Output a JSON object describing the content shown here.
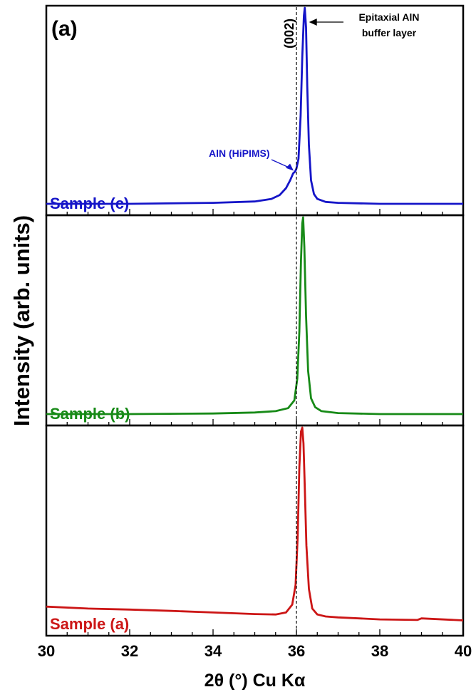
{
  "figure": {
    "panel_label": "(a)",
    "ylabel": "Intensity (arb. units)",
    "xlabel": "2θ (°) Cu Kα",
    "reference_label": "(002)",
    "reference_x": 36.0
  },
  "chart_data": {
    "type": "line",
    "title": "",
    "xlabel": "2θ (°) Cu Kα",
    "ylabel": "Intensity (arb. units)",
    "xlim": [
      30,
      40
    ],
    "xticks": [
      30,
      32,
      34,
      36,
      38,
      40
    ],
    "xtick_labels": [
      "30",
      "32",
      "34",
      "36",
      "38",
      "40"
    ],
    "grid": false,
    "legend": "none",
    "stacked_panels": [
      {
        "key": "c",
        "label": "Sample (c)",
        "color": "#1515c8",
        "ylim": [
          0,
          1
        ],
        "x": [
          30.0,
          32.0,
          34.0,
          35.0,
          35.4,
          35.6,
          35.75,
          35.85,
          35.92,
          35.97,
          36.0,
          36.05,
          36.1,
          36.14,
          36.18,
          36.2,
          36.23,
          36.26,
          36.3,
          36.35,
          36.42,
          36.5,
          36.7,
          37.0,
          38.0,
          40.0
        ],
        "y": [
          0.0,
          0.0,
          0.005,
          0.012,
          0.025,
          0.045,
          0.08,
          0.12,
          0.155,
          0.165,
          0.18,
          0.23,
          0.45,
          0.75,
          0.96,
          1.0,
          0.9,
          0.6,
          0.3,
          0.12,
          0.05,
          0.025,
          0.01,
          0.005,
          0.0,
          0.0
        ],
        "annotations": [
          {
            "text": "AlN (HiPIMS)",
            "x": 35.95,
            "y": 0.165
          },
          {
            "text": "Epitaxial AlN",
            "x": 36.2,
            "y": 0.96
          },
          {
            "text": "buffer layer",
            "x": 36.2,
            "y": 0.96
          }
        ]
      },
      {
        "key": "b",
        "label": "Sample (b)",
        "color": "#178a17",
        "ylim": [
          0,
          1
        ],
        "x": [
          30.0,
          32.0,
          34.0,
          35.0,
          35.5,
          35.8,
          35.95,
          36.02,
          36.07,
          36.11,
          36.14,
          36.16,
          36.19,
          36.23,
          36.28,
          36.35,
          36.45,
          36.6,
          37.0,
          38.0,
          40.0
        ],
        "y": [
          0.0,
          0.0,
          0.003,
          0.008,
          0.015,
          0.03,
          0.07,
          0.18,
          0.42,
          0.78,
          0.97,
          1.0,
          0.85,
          0.5,
          0.22,
          0.08,
          0.035,
          0.015,
          0.005,
          0.0,
          0.0
        ],
        "annotations": []
      },
      {
        "key": "a",
        "label": "Sample (a)",
        "color": "#cc1616",
        "ylim": [
          0,
          1
        ],
        "x": [
          30.0,
          31.0,
          32.0,
          33.0,
          34.0,
          35.0,
          35.5,
          35.75,
          35.9,
          35.98,
          36.03,
          36.07,
          36.11,
          36.14,
          36.17,
          36.2,
          36.24,
          36.3,
          36.38,
          36.5,
          36.7,
          37.0,
          38.0,
          38.9,
          39.0,
          40.0
        ],
        "y": [
          0.09,
          0.08,
          0.075,
          0.068,
          0.06,
          0.052,
          0.05,
          0.06,
          0.1,
          0.2,
          0.45,
          0.8,
          0.98,
          1.0,
          0.92,
          0.7,
          0.4,
          0.18,
          0.08,
          0.05,
          0.04,
          0.035,
          0.025,
          0.022,
          0.03,
          0.02
        ],
        "annotations": []
      }
    ]
  }
}
